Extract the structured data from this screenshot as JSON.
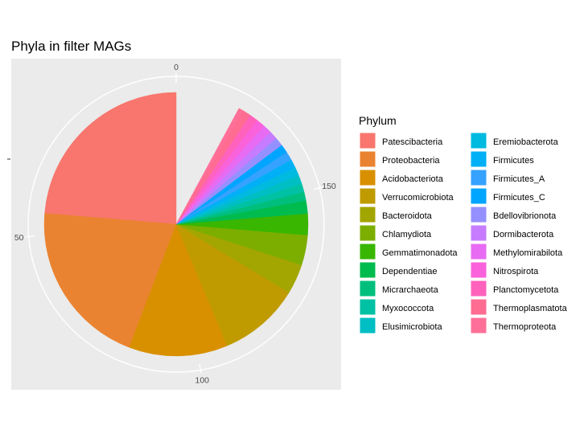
{
  "chart_data": {
    "type": "pie",
    "title": "Phyla in filter MAGs",
    "xlabel": "",
    "ylabel": "",
    "radial_ticks": [
      "0",
      "50",
      "100",
      "150"
    ],
    "total": 190,
    "direction": "counterclockwise",
    "grid": true,
    "legend_position": "right",
    "legend": {
      "title": "Phylum"
    },
    "categories": [
      "Patescibacteria",
      "Proteobacteria",
      "Acidobacteriota",
      "Verrucomicrobiota",
      "Bacteroidota",
      "Chlamydiota",
      "Gemmatimonadota",
      "Dependentiae",
      "Micrarchaeota",
      "Myxococcota",
      "Elusimicrobiota",
      "Eremiobacterota",
      "Firmicutes",
      "Firmicutes_A",
      "Firmicutes_C",
      "Bdellovibrionota",
      "Dormibacterota",
      "Methylomirabilota",
      "Nitrospirota",
      "Planctomycetota",
      "Thermoplasmatota",
      "Thermoproteota"
    ],
    "values": [
      45,
      39,
      23,
      19,
      7,
      7,
      5,
      3,
      2,
      2,
      2,
      2,
      2,
      2,
      2,
      2,
      2,
      2,
      2,
      2,
      2,
      1
    ],
    "colors": [
      "#F8766D",
      "#EA8331",
      "#D89000",
      "#C09B00",
      "#A3A500",
      "#7CAE00",
      "#39B600",
      "#00BB4E",
      "#00BF7D",
      "#00C1A3",
      "#00BFC4",
      "#00BAE0",
      "#00B0F6",
      "#35A2FF",
      "#00A5FF",
      "#9590FF",
      "#C77CFF",
      "#E76BF3",
      "#FA62DB",
      "#FF62BC",
      "#FF6C91",
      "#FF7099"
    ]
  }
}
